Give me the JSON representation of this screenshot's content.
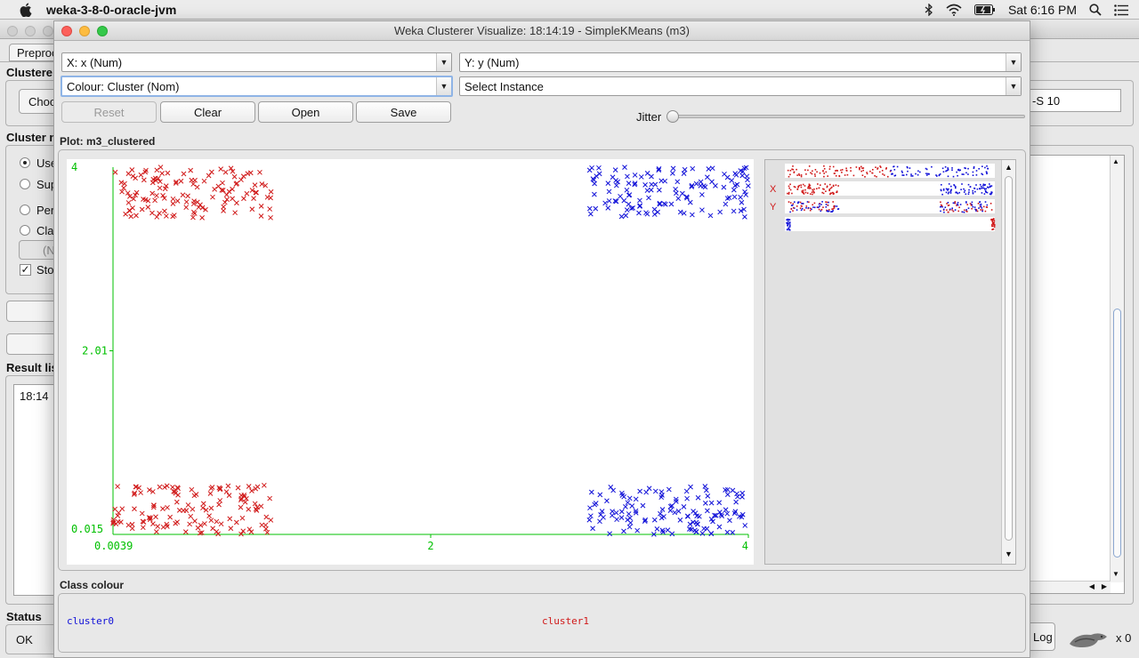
{
  "menubar": {
    "app_name": "weka-3-8-0-oracle-jvm",
    "clock": "Sat 6:16 PM"
  },
  "background_window": {
    "tab_partial": "Preproc",
    "section_clusterer": "Clustere",
    "choose_partial": "Choo",
    "field_partial": "-S 10",
    "section_mode": "Cluster m",
    "radio_labels": [
      "Use",
      "Sup",
      "Per",
      "Cla"
    ],
    "small_btn_partial": "(N",
    "checkbox_label": "Sto",
    "result_list_label": "Result lis",
    "result_item_partial": "18:14",
    "status_label": "Status",
    "status_text": "OK",
    "log_button": "Log",
    "counter": "x 0"
  },
  "window": {
    "title": "Weka Clusterer Visualize: 18:14:19 - SimpleKMeans (m3)"
  },
  "controls": {
    "x_axis": "X: x (Num)",
    "y_axis": "Y: y (Num)",
    "colour": "Colour: Cluster (Nom)",
    "select_instance": "Select Instance",
    "reset": "Reset",
    "clear": "Clear",
    "open": "Open",
    "save": "Save",
    "jitter_label": "Jitter",
    "jitter_value": 0
  },
  "plot": {
    "label": "Plot: m3_clustered",
    "class_colour_label": "Class colour"
  },
  "attr_panel": {
    "x_tag": "X",
    "y_tag": "Y"
  },
  "colors": {
    "cluster0": "#1010d8",
    "cluster1": "#d01818",
    "axis": "#00c000"
  },
  "chart_data": {
    "type": "scatter",
    "title": "",
    "x_tick_labels": [
      "0.0039",
      "2",
      "4"
    ],
    "y_tick_labels": [
      "4",
      "2.01",
      "0.015"
    ],
    "xlim": [
      0.0039,
      4
    ],
    "ylim": [
      0.015,
      4
    ],
    "marker": "x",
    "legend": [
      "cluster0",
      "cluster1"
    ],
    "clusters": [
      {
        "name": "cluster1",
        "color": "#d01818",
        "x_range": [
          0.0039,
          1
        ],
        "y_range": [
          3.45,
          4
        ],
        "approx_points": 130
      },
      {
        "name": "cluster1",
        "color": "#d01818",
        "x_range": [
          0.0039,
          1
        ],
        "y_range": [
          0.015,
          0.55
        ],
        "approx_points": 130
      },
      {
        "name": "cluster0",
        "color": "#1010d8",
        "x_range": [
          3,
          4
        ],
        "y_range": [
          3.45,
          4
        ],
        "approx_points": 130
      },
      {
        "name": "cluster0",
        "color": "#1010d8",
        "x_range": [
          3,
          4
        ],
        "y_range": [
          0.015,
          0.55
        ],
        "approx_points": 130
      }
    ]
  }
}
